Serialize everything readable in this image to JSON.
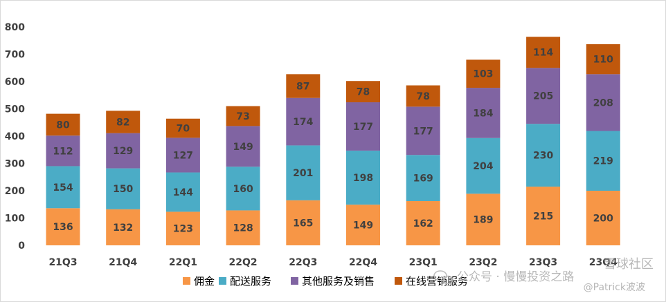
{
  "chart_data": {
    "type": "bar",
    "stacked": true,
    "categories": [
      "21Q3",
      "21Q4",
      "22Q1",
      "22Q2",
      "22Q3",
      "22Q4",
      "23Q1",
      "23Q2",
      "23Q3",
      "23Q4"
    ],
    "series": [
      {
        "name": "佣金",
        "color": "#F79646",
        "values": [
          136,
          132,
          123,
          128,
          165,
          149,
          162,
          189,
          215,
          200
        ]
      },
      {
        "name": "配送服务",
        "color": "#4BACC6",
        "values": [
          154,
          150,
          144,
          160,
          201,
          198,
          169,
          204,
          230,
          219
        ]
      },
      {
        "name": "其他服务及销售",
        "color": "#8064A2",
        "values": [
          112,
          129,
          127,
          149,
          174,
          177,
          177,
          184,
          205,
          208
        ]
      },
      {
        "name": "在线营销服务",
        "color": "#C0580C",
        "values": [
          80,
          82,
          70,
          73,
          87,
          78,
          78,
          103,
          114,
          110
        ]
      }
    ],
    "ylim": [
      0,
      800
    ],
    "yticks": [
      "0",
      "100",
      "200",
      "300",
      "400",
      "500",
      "600",
      "700",
      "800"
    ],
    "grid": false,
    "legend": "bottom",
    "title": "",
    "xlabel": "",
    "ylabel": ""
  },
  "watermark": {
    "line1": "公众号 · 慢慢投资之路",
    "line2": "@Patrick波波",
    "community": "雪球社区"
  }
}
